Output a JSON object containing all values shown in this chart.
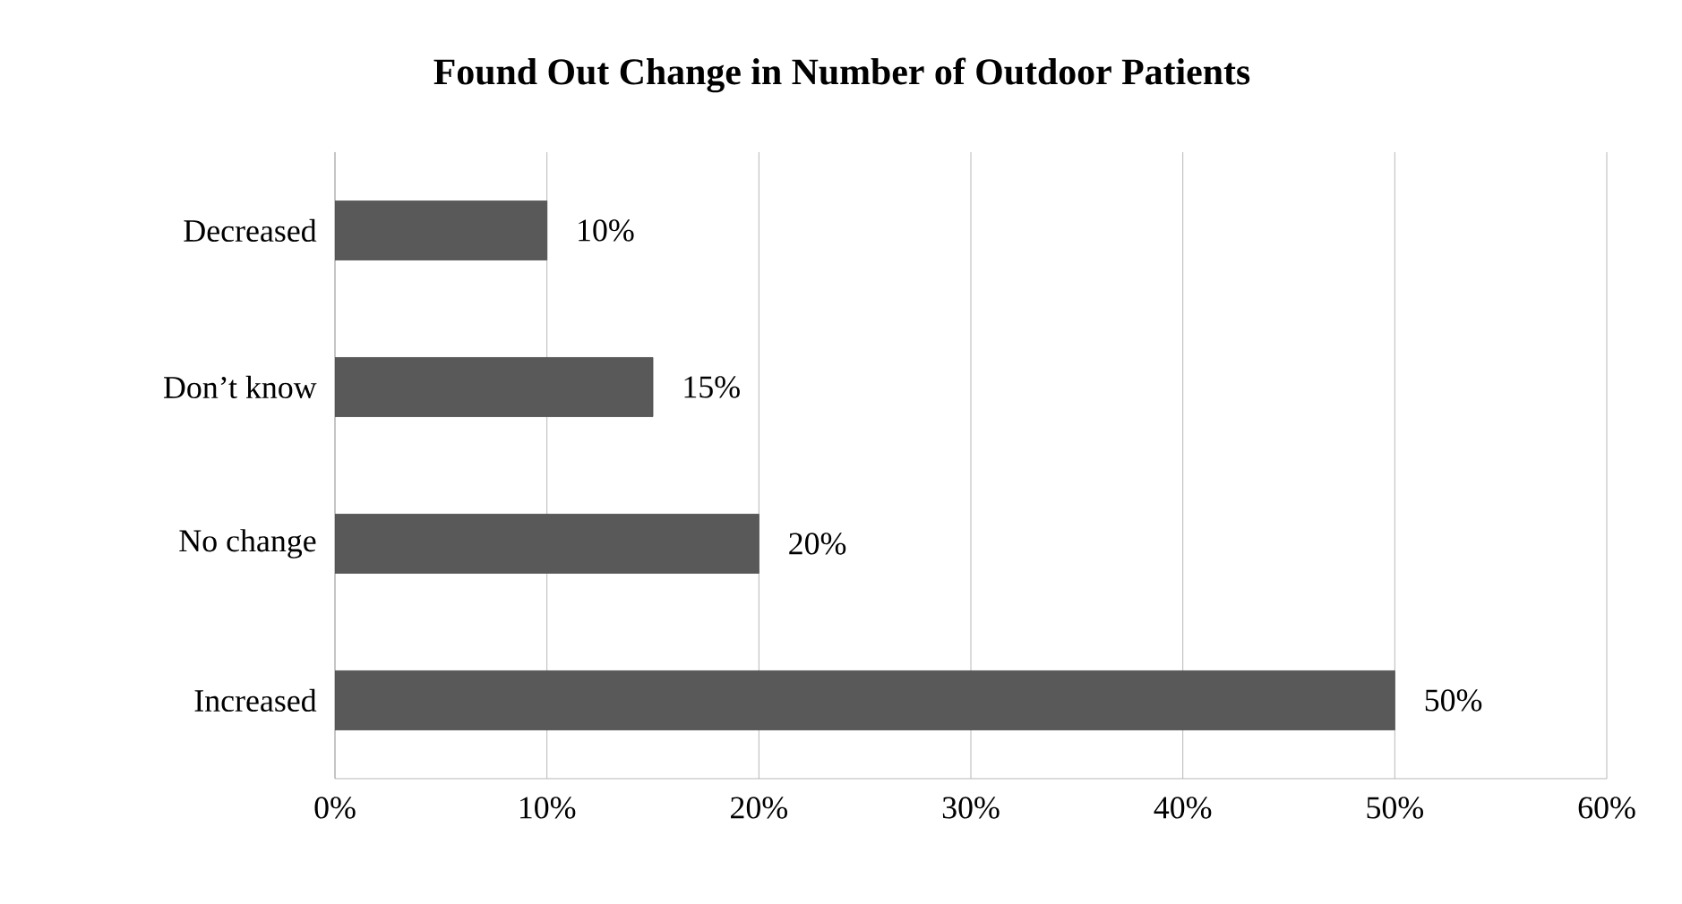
{
  "chart_data": {
    "type": "bar",
    "orientation": "horizontal",
    "title": "Found  Out Change in Number of Outdoor Patients",
    "categories": [
      "Decreased",
      "Don’t know",
      "No change",
      "Increased"
    ],
    "values": [
      10,
      15,
      20,
      50
    ],
    "value_labels": [
      "10%",
      "15%",
      "20%",
      "50%"
    ],
    "color": "#595959",
    "xlim": [
      0,
      60
    ],
    "xticks": [
      {
        "value": 0,
        "label": "0%"
      },
      {
        "value": 10,
        "label": "10%"
      },
      {
        "value": 20,
        "label": "20%"
      },
      {
        "value": 30,
        "label": "30%"
      },
      {
        "value": 40,
        "label": "40%"
      },
      {
        "value": 50,
        "label": "50%"
      },
      {
        "value": 60,
        "label": "60%"
      }
    ],
    "grid": "x"
  }
}
